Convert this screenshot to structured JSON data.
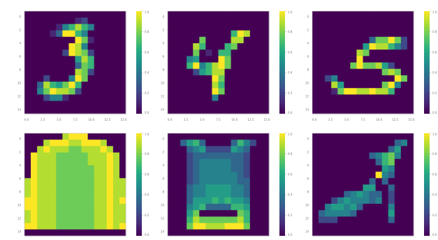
{
  "colormap": {
    "name": "viridis",
    "stops": [
      "#440154",
      "#472c7a",
      "#3b518b",
      "#2c718e",
      "#21908d",
      "#27ad81",
      "#5cc863",
      "#aadc32",
      "#fde725"
    ]
  },
  "chart_data": [
    {
      "type": "heatmap",
      "row": 0,
      "col": 0,
      "depicts": "3",
      "y_ticks": [
        "0",
        "2",
        "4",
        "6",
        "8",
        "10",
        "12",
        "14"
      ],
      "x_ticks": [
        "0.0",
        "2.5",
        "5.0",
        "7.5",
        "10.0",
        "12.5",
        "15.0"
      ],
      "colorbar_ticks": [
        "0.0",
        "0.2",
        "0.4",
        "0.6",
        "0.8",
        "1.0"
      ],
      "clim": [
        0,
        1
      ],
      "grid": [
        "0000000000000000",
        "0000000012000000",
        "0000014686400000",
        "0000139964000000",
        "0000000097100000",
        "0000000984000000",
        "0000002987200000",
        "0000000058600000",
        "0000000037600000",
        "0000000087200000",
        "0002000497000000",
        "0038657960000000",
        "0047988720000000",
        "0002441000000000",
        "0000000000000000",
        "0000000000000000"
      ]
    },
    {
      "type": "heatmap",
      "row": 0,
      "col": 1,
      "depicts": "4",
      "y_ticks": [
        "0",
        "2",
        "4",
        "6",
        "8",
        "10",
        "12",
        "14"
      ],
      "x_ticks": [
        "0.0",
        "2.5",
        "5.0",
        "7.5",
        "10.0",
        "12.5",
        "15.0"
      ],
      "colorbar_ticks": [
        "0.0",
        "0.2",
        "0.4",
        "0.6",
        "0.8",
        "1.0"
      ],
      "clim": [
        0,
        1
      ],
      "grid": [
        "0000000000000000",
        "0000000000000000",
        "0000000000000000",
        "0000000000698000",
        "0000070000880000",
        "0000860006700000",
        "0000701066000000",
        "0004500097000000",
        "0006946897000000",
        "0000256880000000",
        "0000000970000000",
        "0000000860000000",
        "0000000970000000",
        "0000000400000000",
        "0000000000000000",
        "0000000000000000"
      ]
    },
    {
      "type": "heatmap",
      "row": 0,
      "col": 2,
      "depicts": "5",
      "y_ticks": [
        "0",
        "2",
        "4",
        "6",
        "8",
        "10",
        "12",
        "14"
      ],
      "x_ticks": [
        "0.0",
        "2.5",
        "5.0",
        "7.5",
        "10.0",
        "12.5",
        "15.0"
      ],
      "colorbar_ticks": [
        "0.0",
        "0.2",
        "0.4",
        "0.6",
        "0.8",
        "1.0"
      ],
      "clim": [
        0,
        1
      ],
      "grid": [
        "0000000000000000",
        "0000000000000000",
        "0000000000000000",
        "0000000000000000",
        "0000000003779720",
        "0000000059886420",
        "0000000870000000",
        "0000000900000000",
        "0000007977852000",
        "0000000000078700",
        "0024000000000970",
        "0008500000079400",
        "0001799889886000",
        "0000000000000000",
        "0000000000000000",
        "0000000000000000"
      ]
    },
    {
      "type": "heatmap",
      "row": 1,
      "col": 0,
      "depicts": "pullover",
      "y_ticks": [
        "0",
        "2",
        "4",
        "6",
        "8",
        "10",
        "12",
        "14"
      ],
      "x_ticks": [],
      "colorbar_ticks": [
        "0.0",
        "0.2",
        "0.4",
        "0.6",
        "0.8",
        "1.0"
      ],
      "clim": [
        0,
        1
      ],
      "grid": [
        "0000008999000000",
        "0008999889998000",
        "0089888778889800",
        "0988877777888980",
        "0988877777888980",
        "0988877777788980",
        "0988877777788980",
        "8988877777788988",
        "8988877777788988",
        "8988877777788988",
        "9988877777788989",
        "9988877777788988",
        "8988877777788988",
        "8988877777788988",
        "9988877777788989",
        "0000000000000000"
      ]
    },
    {
      "type": "heatmap",
      "row": 1,
      "col": 1,
      "depicts": "dress",
      "y_ticks": [
        "0",
        "2",
        "4",
        "6",
        "8",
        "10",
        "12",
        "14"
      ],
      "x_ticks": [],
      "colorbar_ticks": [
        "0.0",
        "0.2",
        "0.4",
        "0.6",
        "0.8",
        "1.0"
      ],
      "clim": [
        0,
        1
      ],
      "grid": [
        "0000000000000000",
        "0035630000364200",
        "0003452222543000",
        "0002333333332000",
        "0002344444332000",
        "0002344444332000",
        "0002344444432000",
        "0002344444433000",
        "0003445555443000",
        "0003445555443000",
        "0003555656554000",
        "0004563333665000",
        "0005700000076000",
        "0006877777786000",
        "0007998889997000",
        "0000000000000000"
      ]
    },
    {
      "type": "heatmap",
      "row": 1,
      "col": 2,
      "depicts": "sandal",
      "y_ticks": [
        "0",
        "2",
        "4",
        "6",
        "8",
        "10",
        "12",
        "14"
      ],
      "x_ticks": [],
      "colorbar_ticks": [
        "0.0",
        "0.2",
        "0.4",
        "0.6",
        "0.8",
        "1.0"
      ],
      "clim": [
        0,
        1
      ],
      "grid": [
        "0000000000000000",
        "0000000000000340",
        "0000000000003500",
        "0000000003467400",
        "0000000000367000",
        "0000000000054000",
        "0000000000943000",
        "0000000003030000",
        "0000000055003000",
        "0000034543302000",
        "0002454443402000",
        "0045545300004000",
        "0344443000005000",
        "0222000000003000",
        "0000000000000000",
        "0000000000000000"
      ]
    }
  ]
}
